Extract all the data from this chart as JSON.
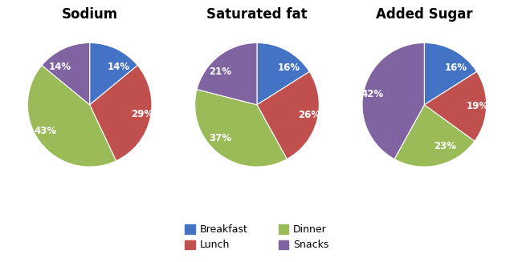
{
  "charts": [
    {
      "title": "Sodium",
      "values": [
        14,
        29,
        43,
        14
      ],
      "labels": [
        "14%",
        "29%",
        "43%",
        "14%"
      ],
      "startangle": 90
    },
    {
      "title": "Saturated fat",
      "values": [
        16,
        26,
        37,
        21
      ],
      "labels": [
        "16%",
        "26%",
        "37%",
        "21%"
      ],
      "startangle": 90
    },
    {
      "title": "Added Sugar",
      "values": [
        16,
        19,
        23,
        42
      ],
      "labels": [
        "16%",
        "19%",
        "23%",
        "42%"
      ],
      "startangle": 90
    }
  ],
  "colors": [
    "#4472C4",
    "#C0504D",
    "#9BBB59",
    "#8064A2"
  ],
  "legend_labels": [
    "Breakfast",
    "Lunch",
    "Dinner",
    "Snacks"
  ],
  "title_fontsize": 12,
  "label_fontsize": 8.5,
  "legend_fontsize": 9,
  "label_distance": 0.68
}
